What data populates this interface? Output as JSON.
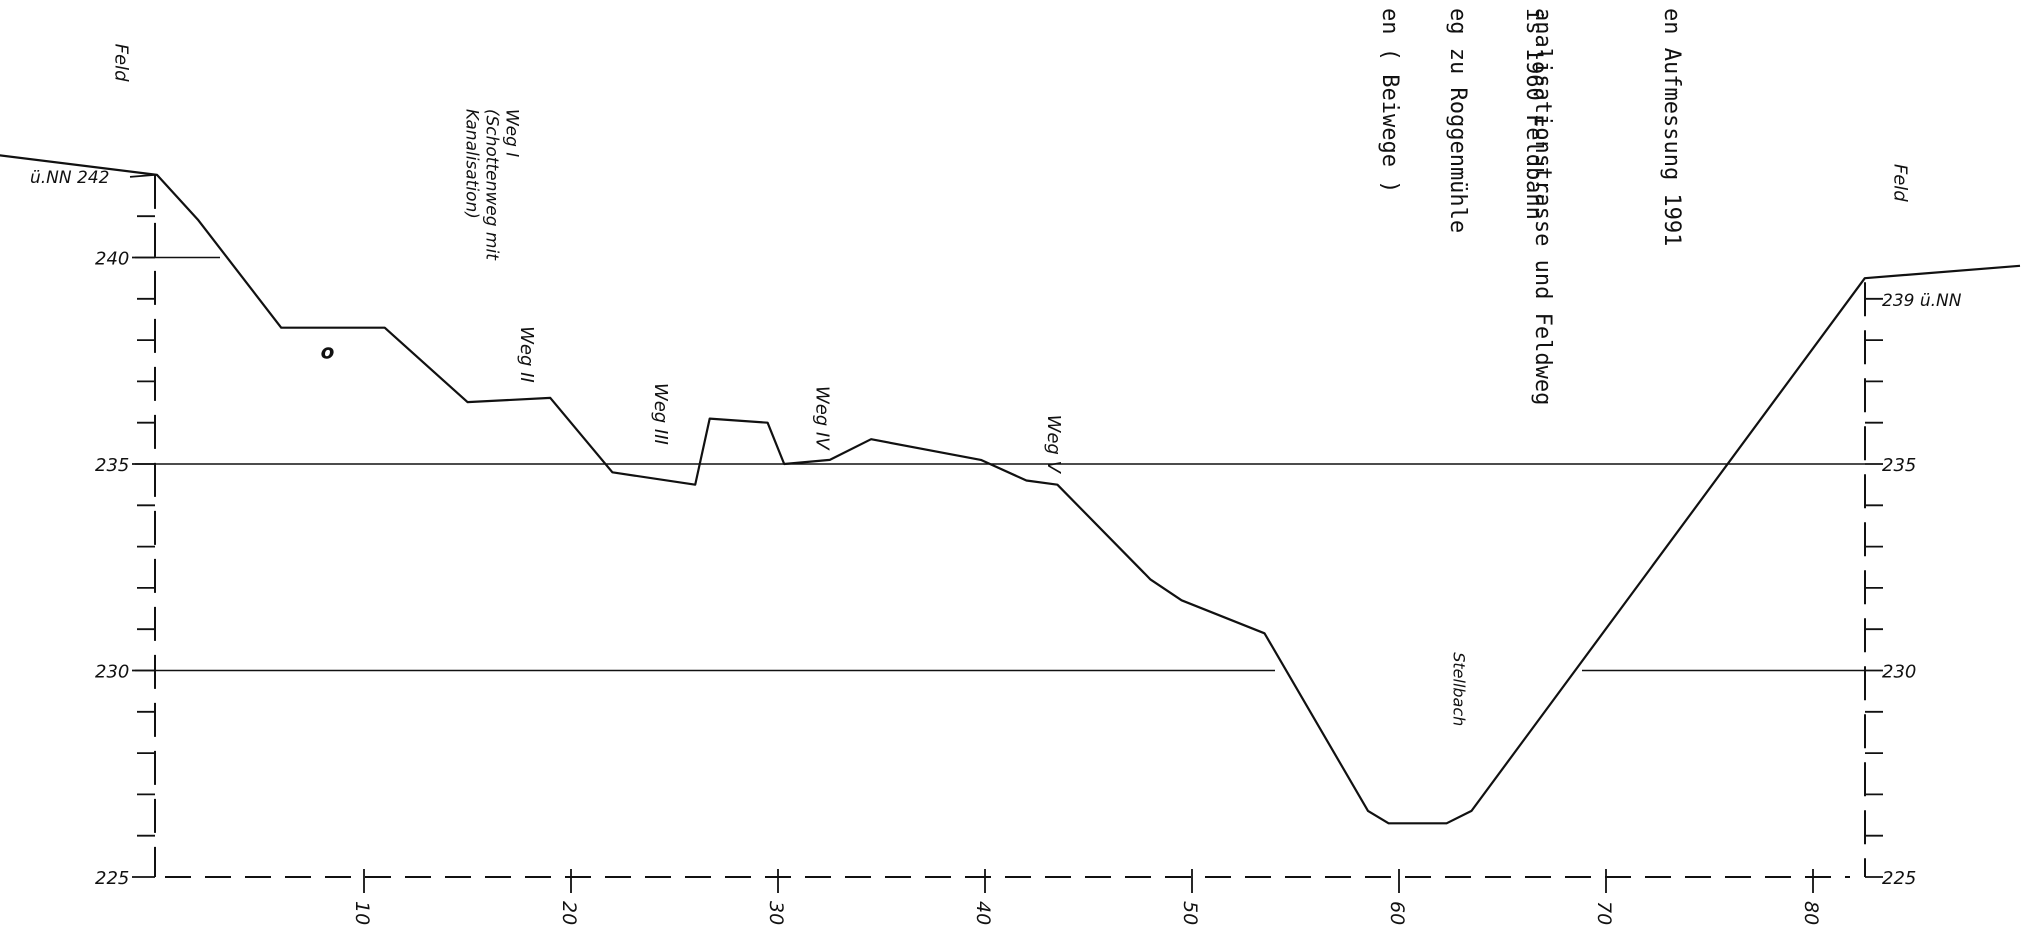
{
  "chart_data": {
    "type": "line",
    "title": "",
    "xlabel": "",
    "ylabel": "",
    "x_ticks": [
      "10",
      "20",
      "30",
      "40",
      "50",
      "60",
      "70",
      "80"
    ],
    "left_axis": {
      "top_label": "ü.NN 242",
      "ticks": [
        "240",
        "235",
        "230",
        "225"
      ]
    },
    "right_axis": {
      "top_label": "239 ü.NN",
      "ticks": [
        "235",
        "230",
        "225"
      ]
    },
    "xlim": [
      0,
      82.5
    ],
    "ylim": [
      225,
      242
    ],
    "grid_levels": [
      240,
      235,
      230
    ],
    "series": [
      {
        "points": [
          [
            -8,
            242.5
          ],
          [
            0,
            242
          ],
          [
            2,
            240.9
          ],
          [
            6,
            238.3
          ],
          [
            11,
            238.3
          ],
          [
            15,
            236.5
          ],
          [
            19,
            236.6
          ],
          [
            22,
            234.8
          ],
          [
            26,
            234.5
          ],
          [
            26.7,
            236.1
          ],
          [
            29.5,
            236.0
          ],
          [
            30.3,
            235.0
          ],
          [
            32.5,
            235.1
          ],
          [
            34.5,
            235.6
          ],
          [
            39.8,
            235.1
          ],
          [
            42,
            234.6
          ],
          [
            43.5,
            234.5
          ],
          [
            48,
            232.2
          ],
          [
            49.5,
            231.7
          ],
          [
            53.5,
            230.9
          ],
          [
            58.5,
            226.6
          ],
          [
            59.5,
            226.3
          ],
          [
            62.3,
            226.3
          ],
          [
            63.5,
            226.6
          ],
          [
            82.5,
            239.5
          ],
          [
            90,
            239.8
          ]
        ]
      }
    ],
    "annotations": [
      {
        "text": "Feld",
        "x": -5,
        "y": 244.5
      },
      {
        "text": "Weg I",
        "x": 11,
        "y": 240.5
      },
      {
        "text": "(Schottenweg mit",
        "x": 11,
        "y": 240.5
      },
      {
        "text": "Kanalisation)",
        "x": 11,
        "y": 240.5
      },
      {
        "text": "o",
        "x": 8.1,
        "y": 237.8
      },
      {
        "text": "Weg II",
        "x": 17,
        "y": 238
      },
      {
        "text": "Weg III",
        "x": 24,
        "y": 236.6
      },
      {
        "text": "Weg IV",
        "x": 31.8,
        "y": 236.6
      },
      {
        "text": "Weg V",
        "x": 43,
        "y": 236.1
      },
      {
        "text": "Stellbach",
        "x": 62.2,
        "y": 230.2
      },
      {
        "text": "Feld",
        "x": 88,
        "y": 240.5
      }
    ],
    "legend_fragments": [
      "en Aufmessung 1991",
      "is 1960 Feldbahn",
      "analisationstrasse und Feldweg",
      "eg zu Roggenmühle",
      "en ( Beiwege )"
    ]
  }
}
